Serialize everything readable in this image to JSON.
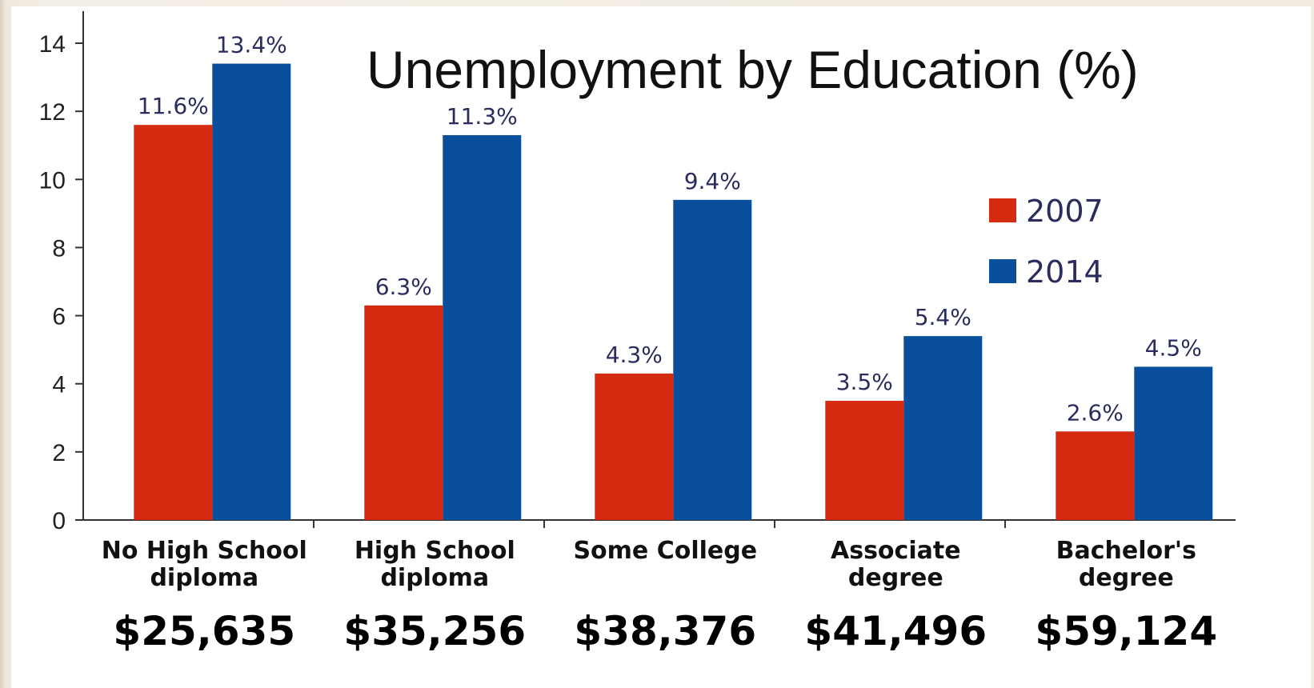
{
  "chart_data": {
    "type": "bar",
    "title": "Unemployment by Education (%)",
    "xlabel": "",
    "ylabel": "",
    "ylim": [
      0,
      14
    ],
    "y_ticks": [
      "0",
      "2",
      "4",
      "6",
      "8",
      "10",
      "12",
      "14"
    ],
    "categories": [
      [
        "No High School",
        "diploma"
      ],
      [
        "High School",
        "diploma"
      ],
      [
        "Some College"
      ],
      [
        "Associate",
        "degree"
      ],
      [
        "Bachelor's",
        "degree"
      ]
    ],
    "salaries": [
      "$25,635",
      "$35,256",
      "$38,376",
      "$41,496",
      "$59,124"
    ],
    "series": [
      {
        "name": "2007",
        "color": "#d42a10",
        "values": [
          11.6,
          6.3,
          4.3,
          3.5,
          2.6
        ],
        "labels": [
          "11.6%",
          "6.3%",
          "4.3%",
          "3.5%",
          "2.6%"
        ]
      },
      {
        "name": "2014",
        "color": "#0a4f9c",
        "values": [
          13.4,
          11.3,
          9.4,
          5.4,
          4.5
        ],
        "labels": [
          "13.4%",
          "11.3%",
          "9.4%",
          "5.4%",
          "4.5%"
        ]
      }
    ],
    "legend_position": "top-right",
    "grid": false
  }
}
